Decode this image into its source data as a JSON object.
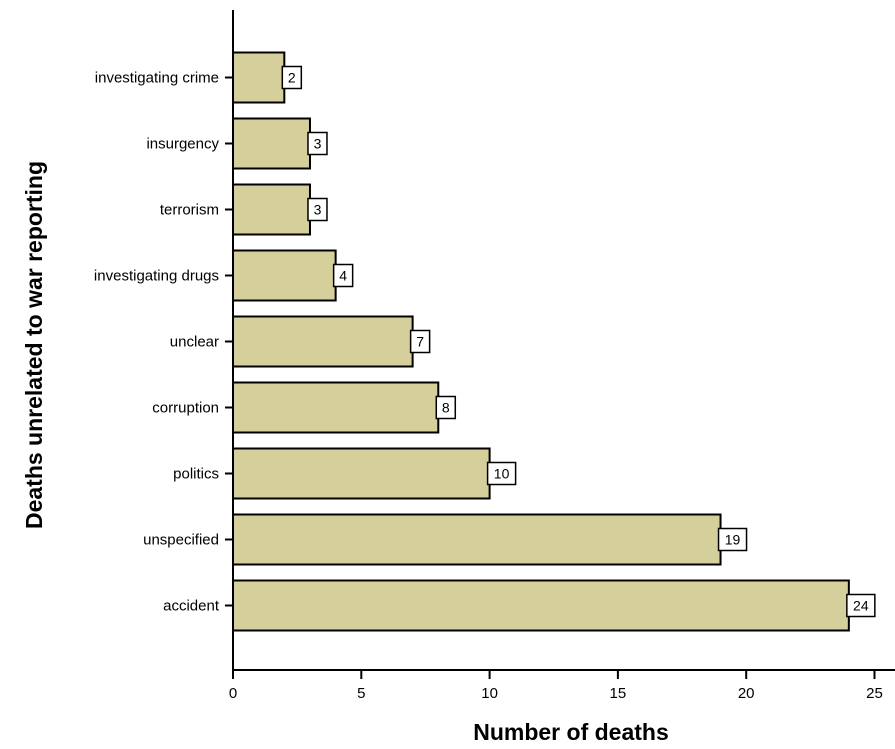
{
  "chart_data": {
    "type": "bar",
    "orientation": "horizontal",
    "categories": [
      "investigating crime",
      "insurgency",
      "terrorism",
      "investigating drugs",
      "unclear",
      "corruption",
      "politics",
      "unspecified",
      "accident"
    ],
    "values": [
      2,
      3,
      3,
      4,
      7,
      8,
      10,
      19,
      24
    ],
    "xlabel": "Number of deaths",
    "ylabel": "Deaths unrelated to war reporting",
    "xlim": [
      0,
      25
    ],
    "xticks": [
      0,
      5,
      10,
      15,
      20,
      25
    ],
    "data_labels": true,
    "grid": false,
    "legend": "none",
    "colors": {
      "bar_fill": "#d4cf9b",
      "bar_stroke": "#000000",
      "label_box": "#ffffff"
    }
  }
}
